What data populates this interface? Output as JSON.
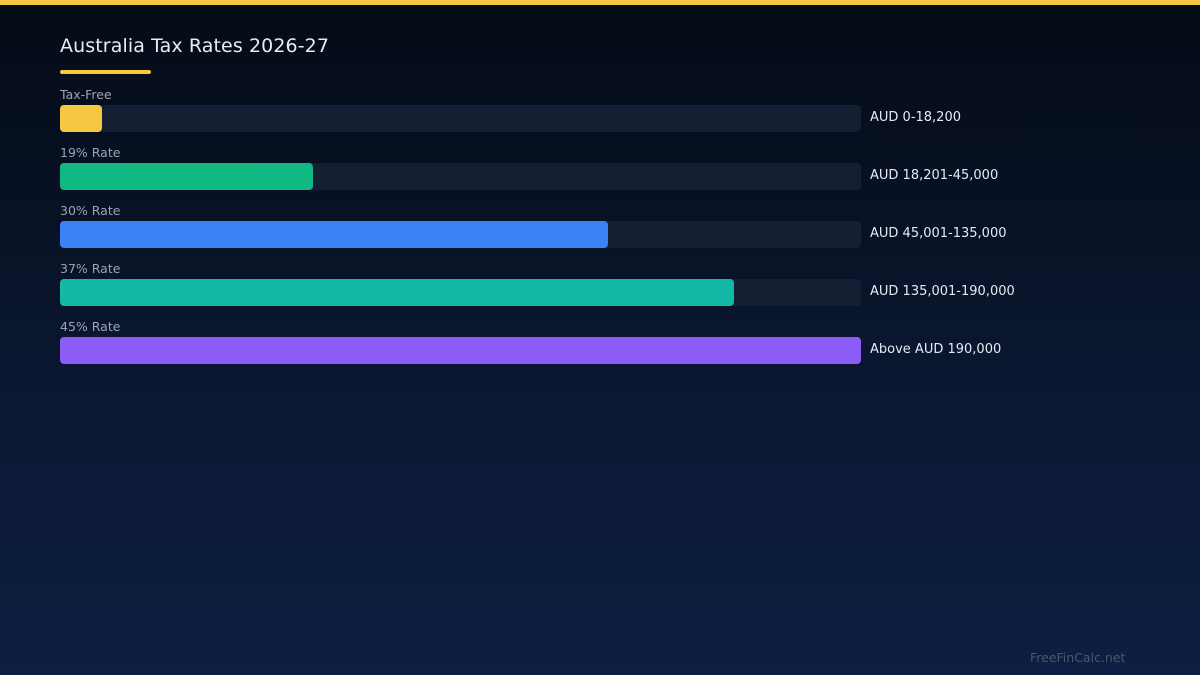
{
  "colors": {
    "accent": "#f5c842",
    "track": "#151f33"
  },
  "chart_data": {
    "type": "bar",
    "orientation": "horizontal",
    "title": "Australia Tax Rates 2026-27",
    "categories": [
      "Tax-Free",
      "19% Rate",
      "30% Rate",
      "37% Rate",
      "45% Rate"
    ],
    "values": [
      0.053,
      0.316,
      0.684,
      0.841,
      1.0
    ],
    "value_labels": [
      "AUD 0-18,200",
      "AUD 18,201-45,000",
      "AUD 45,001-135,000",
      "AUD 135,001-190,000",
      "Above AUD 190,000"
    ],
    "bar_colors": [
      "#f5c842",
      "#10b981",
      "#3b82f6",
      "#14b8a6",
      "#8b5cf6"
    ],
    "xlim": [
      0,
      1
    ],
    "grid": false,
    "legend": "none"
  },
  "watermark": "FreeFinCalc.net"
}
